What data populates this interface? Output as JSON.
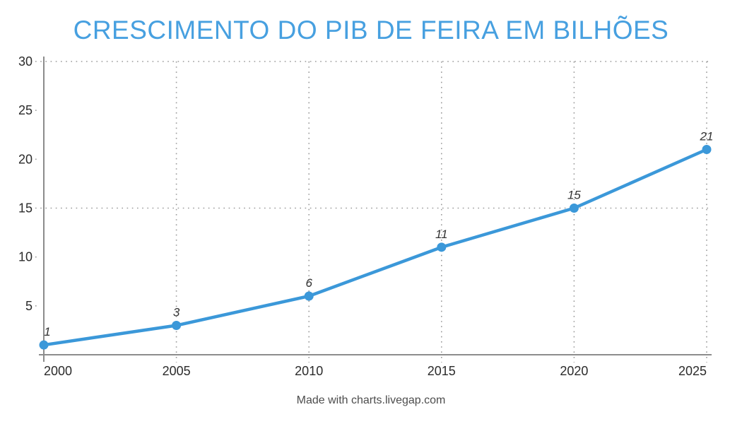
{
  "chart_data": {
    "type": "line",
    "title": "CRESCIMENTO DO PIB DE FEIRA EM BILHÕES",
    "categories": [
      "2000",
      "2005",
      "2010",
      "2015",
      "2020",
      "2025"
    ],
    "series": [
      {
        "name": "PIB",
        "values": [
          1,
          3,
          6,
          11,
          15,
          21
        ]
      }
    ],
    "point_labels": [
      "1",
      "3",
      "6",
      "11",
      "15",
      "21"
    ],
    "xlabel": "",
    "ylabel": "",
    "ylim": [
      0,
      30
    ],
    "yticks": [
      5,
      10,
      15,
      20,
      25,
      30
    ],
    "major_gridlines_y": [
      15,
      30
    ],
    "grid_style": "dotted",
    "legend": "none"
  },
  "footer": {
    "credit": "Made with charts.livegap.com"
  },
  "colors": {
    "title": "#47a0e0",
    "line": "#3b98d9",
    "point": "#3b98d9",
    "grid": "#9a9a9a",
    "axis": "#8c8c8c",
    "tick_label": "#2b2b2b",
    "data_label": "#333333",
    "footer_text": "#4d4d4d",
    "background": "#ffffff"
  }
}
